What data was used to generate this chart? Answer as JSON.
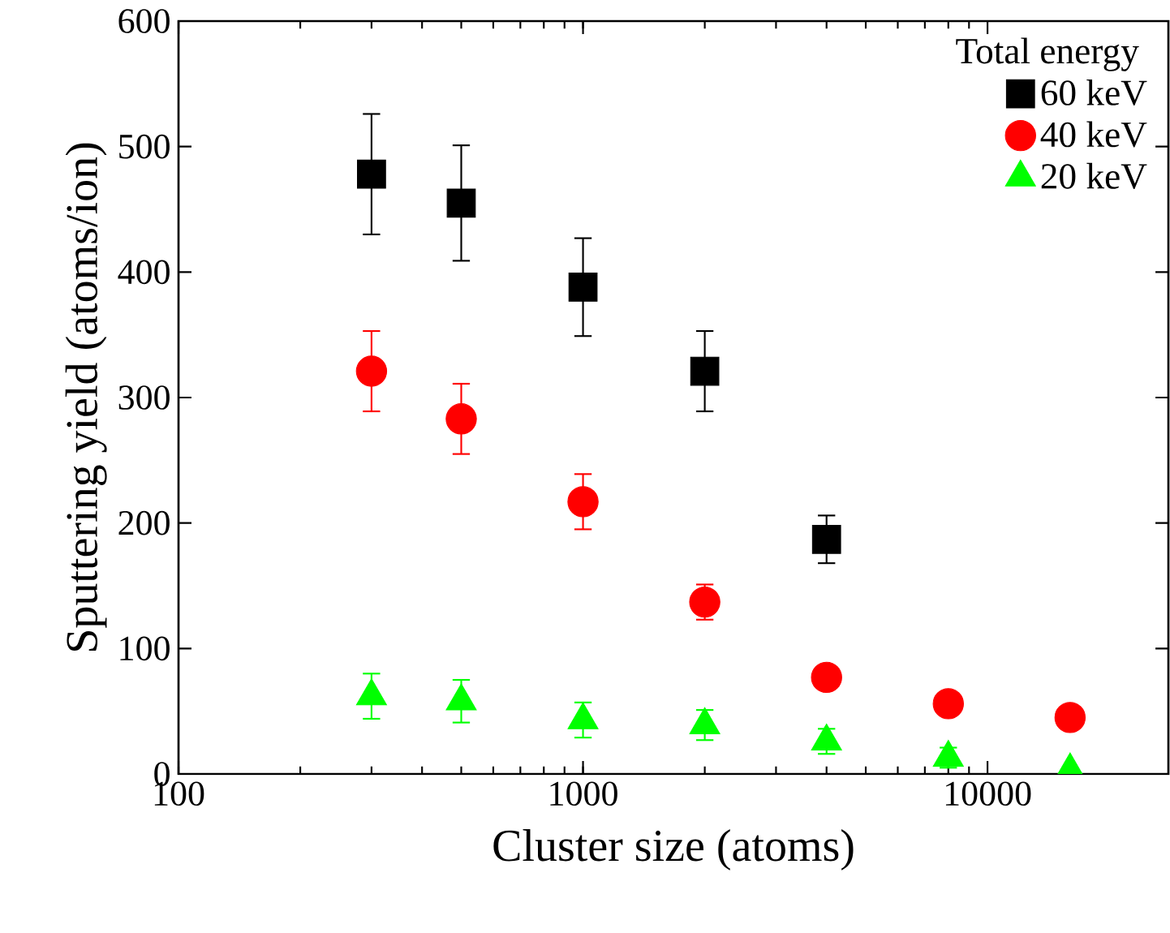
{
  "chart_data": {
    "type": "scatter",
    "xlabel": "Cluster size (atoms)",
    "ylabel": "Sputtering yield (atoms/ion)",
    "legend_title": "Total energy",
    "legend": "top right",
    "log": "x",
    "xlim": [
      100,
      28000
    ],
    "xticks": [
      100,
      1000,
      10000
    ],
    "ylim": [
      0,
      600
    ],
    "yticks": [
      0,
      100,
      200,
      300,
      400,
      500,
      600
    ],
    "grid": false,
    "series": [
      {
        "name": "60 keV",
        "color": "#000000",
        "marker": "square",
        "x": [
          300,
          500,
          1000,
          2000,
          4000
        ],
        "values": [
          478,
          455,
          388,
          321,
          187
        ],
        "errors": [
          48,
          46,
          39,
          32,
          19
        ]
      },
      {
        "name": "40 keV",
        "color": "#ff0000",
        "marker": "circle",
        "x": [
          300,
          500,
          1000,
          2000,
          4000,
          8000,
          16000
        ],
        "values": [
          321,
          283,
          217,
          137,
          77,
          56,
          45
        ],
        "errors": [
          32,
          28,
          22,
          14,
          8,
          null,
          null
        ]
      },
      {
        "name": "20 keV",
        "color": "#00ff00",
        "marker": "triangle",
        "x": [
          300,
          500,
          1000,
          2000,
          4000,
          8000,
          16000
        ],
        "values": [
          62,
          58,
          43,
          39,
          26,
          13,
          3
        ],
        "errors": [
          18,
          17,
          14,
          12,
          10,
          8,
          null
        ]
      }
    ]
  }
}
